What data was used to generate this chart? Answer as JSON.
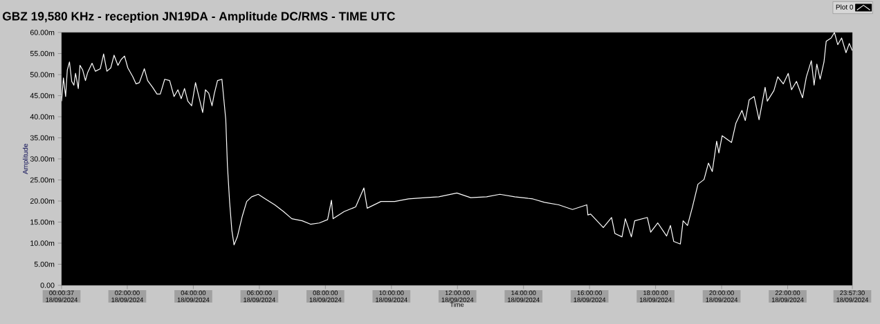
{
  "chart_data": {
    "type": "line",
    "title": "GBZ  19,580 KHz - reception JN19DA -  Amplitude DC/RMS   - TIME UTC",
    "xlabel": "Time",
    "ylabel": "Amplitude",
    "legend": "top right",
    "xlim": [
      "2024-09-18T00:00:37",
      "2024-09-18T23:57:30"
    ],
    "ylim": [
      0,
      60
    ],
    "xticks": [
      {
        "value": "2024-09-18T00:00:37",
        "label": "00:00:37 18/09/2024"
      },
      {
        "value": "2024-09-18T02:00",
        "label": "02:00:00 18/09/2024"
      },
      {
        "value": "2024-09-18T04:00",
        "label": "04:00:00 18/09/2024"
      },
      {
        "value": "2024-09-18T06:00",
        "label": "06:00:00 18/09/2024"
      },
      {
        "value": "2024-09-18T08:00",
        "label": "08:00:00 18/09/2024"
      },
      {
        "value": "2024-09-18T10:00",
        "label": "10:00:00 18/09/2024"
      },
      {
        "value": "2024-09-18T12:00",
        "label": "12:00:00 18/09/2024"
      },
      {
        "value": "2024-09-18T14:00",
        "label": "14:00:00 18/09/2024"
      },
      {
        "value": "2024-09-18T16:00",
        "label": "16:00:00 18/09/2024"
      },
      {
        "value": "2024-09-18T18:00",
        "label": "18:00:00 18/09/2024"
      },
      {
        "value": "2024-09-18T20:00",
        "label": "20:00:00 18/09/2024"
      },
      {
        "value": "2024-09-18T22:00",
        "label": "22:00:00 18/09/2024"
      },
      {
        "value": "2024-09-18T23:57:30",
        "label": "23:57:30 18/09/2024"
      }
    ],
    "yticks": [
      {
        "value": 0,
        "label": "0.00"
      },
      {
        "value": 5,
        "label": "5.00m"
      },
      {
        "value": 10,
        "label": "10.00m"
      },
      {
        "value": 15,
        "label": "15.00m"
      },
      {
        "value": 20,
        "label": "20.00m"
      },
      {
        "value": 25,
        "label": "25.00m"
      },
      {
        "value": 30,
        "label": "30.00m"
      },
      {
        "value": 35,
        "label": "35.00m"
      },
      {
        "value": 40,
        "label": "40.00m"
      },
      {
        "value": 45,
        "label": "45.00m"
      },
      {
        "value": 50,
        "label": "50.00m"
      },
      {
        "value": 55,
        "label": "55.00m"
      },
      {
        "value": 60,
        "label": "60.00m"
      }
    ],
    "series": [
      {
        "name": "Plot 0",
        "color": "#ffffff",
        "x": [
          "2024-09-18T00:00:37",
          "2024-09-18T00:04",
          "2024-09-18T00:08",
          "2024-09-18T00:11",
          "2024-09-18T00:15",
          "2024-09-18T00:19",
          "2024-09-18T00:23",
          "2024-09-18T00:26",
          "2024-09-18T00:31",
          "2024-09-18T00:34",
          "2024-09-18T00:39",
          "2024-09-18T00:44",
          "2024-09-18T00:48",
          "2024-09-18T00:56",
          "2024-09-18T01:02",
          "2024-09-18T01:11",
          "2024-09-18T01:17",
          "2024-09-18T01:23",
          "2024-09-18T01:30",
          "2024-09-18T01:36",
          "2024-09-18T01:43",
          "2024-09-18T01:49",
          "2024-09-18T01:55",
          "2024-09-18T02:01",
          "2024-09-18T02:10",
          "2024-09-18T02:16",
          "2024-09-18T02:22",
          "2024-09-18T02:31",
          "2024-09-18T02:37",
          "2024-09-18T02:46",
          "2024-09-18T02:54",
          "2024-09-18T03:00",
          "2024-09-18T03:08",
          "2024-09-18T03:17",
          "2024-09-18T03:25",
          "2024-09-18T03:32",
          "2024-09-18T03:38",
          "2024-09-18T03:44",
          "2024-09-18T03:50",
          "2024-09-18T03:57",
          "2024-09-18T04:04",
          "2024-09-18T04:10",
          "2024-09-18T04:17",
          "2024-09-18T04:22",
          "2024-09-18T04:28",
          "2024-09-18T04:34",
          "2024-09-18T04:38",
          "2024-09-18T04:44",
          "2024-09-18T04:52",
          "2024-09-18T04:55",
          "2024-09-18T04:59",
          "2024-09-18T05:02",
          "2024-09-18T05:06",
          "2024-09-18T05:10",
          "2024-09-18T05:14",
          "2024-09-18T05:20",
          "2024-09-18T05:29",
          "2024-09-18T05:37",
          "2024-09-18T05:46",
          "2024-09-18T05:58",
          "2024-09-18T06:11",
          "2024-09-18T06:28",
          "2024-09-18T06:44",
          "2024-09-18T06:59",
          "2024-09-18T07:18",
          "2024-09-18T07:33",
          "2024-09-18T07:49",
          "2024-09-18T08:04",
          "2024-09-18T08:11",
          "2024-09-18T08:14",
          "2024-09-18T08:34",
          "2024-09-18T08:55",
          "2024-09-18T09:10",
          "2024-09-18T09:16",
          "2024-09-18T09:41",
          "2024-09-18T10:06",
          "2024-09-18T10:31",
          "2024-09-18T11:01",
          "2024-09-18T11:26",
          "2024-09-18T11:59",
          "2024-09-18T12:24",
          "2024-09-18T12:53",
          "2024-09-18T13:17",
          "2024-09-18T13:44",
          "2024-09-18T14:17",
          "2024-09-18T14:38",
          "2024-09-18T15:04",
          "2024-09-18T15:29",
          "2024-09-18T15:55",
          "2024-09-18T15:57",
          "2024-09-18T16:02",
          "2024-09-18T16:25",
          "2024-09-18T16:40",
          "2024-09-18T16:46",
          "2024-09-18T16:59",
          "2024-09-18T17:05",
          "2024-09-18T17:16",
          "2024-09-18T17:22",
          "2024-09-18T17:45",
          "2024-09-18T17:51",
          "2024-09-18T18:04",
          "2024-09-18T18:20",
          "2024-09-18T18:27",
          "2024-09-18T18:33",
          "2024-09-18T18:45",
          "2024-09-18T18:50",
          "2024-09-18T18:58",
          "2024-09-18T19:07",
          "2024-09-18T19:17",
          "2024-09-18T19:28",
          "2024-09-18T19:36",
          "2024-09-18T19:43",
          "2024-09-18T19:51",
          "2024-09-18T19:55",
          "2024-09-18T20:01",
          "2024-09-18T20:18",
          "2024-09-18T20:26",
          "2024-09-18T20:37",
          "2024-09-18T20:43",
          "2024-09-18T20:50",
          "2024-09-18T20:59",
          "2024-09-18T21:08",
          "2024-09-18T21:19",
          "2024-09-18T21:23",
          "2024-09-18T21:35",
          "2024-09-18T21:42",
          "2024-09-18T21:52",
          "2024-09-18T22:01",
          "2024-09-18T22:07",
          "2024-09-18T22:16",
          "2024-09-18T22:27",
          "2024-09-18T22:34",
          "2024-09-18T22:43",
          "2024-09-18T22:48",
          "2024-09-18T22:53",
          "2024-09-18T22:59",
          "2024-09-18T23:06",
          "2024-09-18T23:10",
          "2024-09-18T23:19",
          "2024-09-18T23:25",
          "2024-09-18T23:31",
          "2024-09-18T23:38",
          "2024-09-18T23:46",
          "2024-09-18T23:52",
          "2024-09-18T23:57:30"
        ],
        "values": [
          43.7,
          49.2,
          44.8,
          51.1,
          53.0,
          48.4,
          47.5,
          50.3,
          46.7,
          52.2,
          51.1,
          48.6,
          50.5,
          52.7,
          50.8,
          51.4,
          54.9,
          50.8,
          51.6,
          54.6,
          52.2,
          53.6,
          54.4,
          51.6,
          49.5,
          47.8,
          48.1,
          51.4,
          48.6,
          47.0,
          45.4,
          45.4,
          48.9,
          48.6,
          44.8,
          46.4,
          44.3,
          46.7,
          43.7,
          42.6,
          48.1,
          44.8,
          41.0,
          46.4,
          45.6,
          42.6,
          45.4,
          48.6,
          48.9,
          44.8,
          39.3,
          28.4,
          19.7,
          13.1,
          9.6,
          11.5,
          16.4,
          19.9,
          21.0,
          21.6,
          20.5,
          19.1,
          17.5,
          15.8,
          15.3,
          14.5,
          14.8,
          15.6,
          20.2,
          15.8,
          17.5,
          18.6,
          23.1,
          18.3,
          19.9,
          19.9,
          20.5,
          20.8,
          21.0,
          21.9,
          20.8,
          21.0,
          21.6,
          21.0,
          20.5,
          19.7,
          19.1,
          18.0,
          19.1,
          16.7,
          16.9,
          13.7,
          16.1,
          12.3,
          11.5,
          15.8,
          11.5,
          15.3,
          16.1,
          12.6,
          14.8,
          11.7,
          14.2,
          10.4,
          9.8,
          15.3,
          14.2,
          18.6,
          24.0,
          25.1,
          29.0,
          27.0,
          34.2,
          31.4,
          35.5,
          33.9,
          38.5,
          41.5,
          39.1,
          44.0,
          44.8,
          39.3,
          47.0,
          43.7,
          46.2,
          49.5,
          47.8,
          50.3,
          46.4,
          48.4,
          44.5,
          49.5,
          53.3,
          47.5,
          52.5,
          48.9,
          53.0,
          57.9,
          58.7,
          60.0,
          57.1,
          58.7,
          55.2,
          57.4,
          55.7
        ]
      }
    ]
  }
}
